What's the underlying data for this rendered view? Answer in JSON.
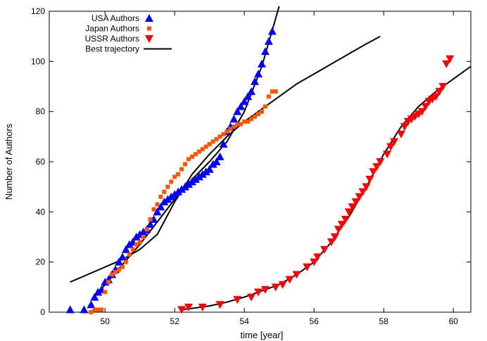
{
  "chart_data": {
    "type": "scatter",
    "title": "",
    "xlabel": "time [year]",
    "ylabel": "Number of Authors",
    "xlim": [
      48.4,
      60.5
    ],
    "ylim": [
      0,
      120
    ],
    "xticks": [
      50,
      52,
      54,
      56,
      58,
      60
    ],
    "yticks": [
      0,
      20,
      40,
      60,
      80,
      100,
      120
    ],
    "legend_position": "top-left",
    "series": [
      {
        "name": "USA Authors",
        "marker": "triangle-up",
        "color": "#0000ff",
        "x": [
          49.0,
          49.4,
          49.6,
          49.7,
          49.8,
          49.9,
          50.0,
          50.1,
          50.2,
          50.3,
          50.4,
          50.5,
          50.6,
          50.7,
          50.8,
          50.9,
          51.0,
          51.1,
          51.2,
          51.3,
          51.4,
          51.5,
          51.6,
          51.7,
          51.8,
          51.9,
          52.0,
          52.1,
          52.2,
          52.3,
          52.4,
          52.5,
          52.6,
          52.7,
          52.8,
          52.9,
          53.0,
          53.1,
          53.2,
          53.3,
          53.4,
          53.5,
          53.6,
          53.7,
          53.8,
          53.9,
          54.0,
          54.1,
          54.2,
          54.3,
          54.4,
          54.5,
          54.6,
          54.7,
          54.8
        ],
        "y": [
          1,
          1,
          3,
          6,
          8,
          9,
          12,
          13,
          15,
          17,
          20,
          22,
          25,
          27,
          28,
          30,
          31,
          32,
          33,
          35,
          37,
          40,
          42,
          44,
          45,
          46,
          47,
          48,
          49,
          50,
          51,
          52,
          53,
          54,
          55,
          56,
          57,
          59,
          60,
          62,
          67,
          72,
          74,
          77,
          80,
          82,
          84,
          86,
          88,
          92,
          95,
          99,
          104,
          108,
          112
        ]
      },
      {
        "name": "Japan Authors",
        "marker": "square",
        "color": "#ff5500",
        "x": [
          49.6,
          49.7,
          49.8,
          49.9,
          50.0,
          50.1,
          50.2,
          50.3,
          50.4,
          50.5,
          50.6,
          50.7,
          50.8,
          50.9,
          51.0,
          51.1,
          51.2,
          51.3,
          51.4,
          51.5,
          51.6,
          51.7,
          51.8,
          51.9,
          52.0,
          52.1,
          52.2,
          52.3,
          52.4,
          52.5,
          52.6,
          52.7,
          52.8,
          52.9,
          53.0,
          53.1,
          53.2,
          53.3,
          53.4,
          53.5,
          53.6,
          53.7,
          53.8,
          53.9,
          54.0,
          54.1,
          54.2,
          54.3,
          54.4,
          54.5,
          54.6,
          54.7,
          54.8,
          54.9
        ],
        "y": [
          0,
          1,
          1,
          1,
          8,
          12,
          15,
          16,
          17,
          18,
          20,
          23,
          25,
          27,
          28,
          30,
          33,
          37,
          41,
          43,
          46,
          48,
          50,
          52,
          54,
          55,
          57,
          59,
          61,
          62,
          63,
          64,
          65,
          66,
          67,
          68,
          69,
          70,
          71,
          72,
          73,
          74,
          75,
          75,
          76,
          76,
          77,
          78,
          79,
          80,
          82,
          86,
          88,
          88
        ]
      },
      {
        "name": "USSR Authors",
        "marker": "triangle-down",
        "color": "#ff0000",
        "x": [
          52.2,
          52.4,
          52.8,
          53.3,
          53.8,
          54.2,
          54.4,
          54.6,
          54.9,
          55.1,
          55.3,
          55.5,
          55.8,
          56.0,
          56.1,
          56.3,
          56.5,
          56.6,
          56.7,
          56.8,
          56.9,
          57.0,
          57.1,
          57.2,
          57.3,
          57.4,
          57.5,
          57.6,
          57.7,
          57.8,
          57.9,
          58.1,
          58.2,
          58.3,
          58.5,
          58.6,
          58.7,
          58.8,
          58.9,
          59.0,
          59.1,
          59.2,
          59.3,
          59.4,
          59.5,
          59.6,
          59.7,
          59.8,
          59.9
        ],
        "y": [
          1,
          2,
          2,
          3,
          5,
          6,
          8,
          9,
          10,
          11,
          13,
          15,
          18,
          20,
          22,
          25,
          28,
          30,
          33,
          35,
          37,
          40,
          42,
          44,
          46,
          48,
          50,
          53,
          56,
          58,
          60,
          63,
          66,
          68,
          71,
          74,
          76,
          77,
          78,
          79,
          80,
          82,
          84,
          85,
          86,
          88,
          90,
          99,
          101
        ]
      }
    ],
    "lines": [
      {
        "name": "Best trajectory",
        "color": "#000000",
        "segments": [
          {
            "x": [
              49.0,
              49.5,
              50.0,
              50.5,
              51.0,
              51.5,
              52.0,
              52.5,
              53.0,
              53.5,
              54.0,
              54.5,
              55.0,
              55.5,
              56.0,
              56.5,
              57.0,
              57.5,
              57.9
            ],
            "y": [
              12,
              15,
              18,
              21,
              25,
              31,
              44,
              55,
              63,
              70,
              76,
              81,
              86,
              91,
              95,
              99,
              103,
              107,
              110
            ]
          },
          {
            "x": [
              49.7,
              50.0,
              50.5,
              51.0,
              51.5,
              52.0,
              52.5,
              53.0,
              53.5,
              54.0,
              54.5,
              55.0
            ],
            "y": [
              6,
              11,
              19,
              27,
              36,
              45,
              53,
              60,
              68,
              80,
              98,
              122
            ]
          },
          {
            "x": [
              52.2,
              52.5,
              53.0,
              53.5,
              54.0,
              54.5,
              55.0,
              55.5,
              56.0,
              56.5,
              57.0,
              57.5,
              58.0,
              58.5,
              59.0,
              59.5,
              60.0,
              60.5
            ],
            "y": [
              1,
              1.5,
              2.5,
              4,
              6,
              8.5,
              11,
              15,
              20,
              28,
              38,
              50,
              63,
              74,
              82,
              88,
              93,
              98
            ]
          }
        ]
      }
    ]
  }
}
